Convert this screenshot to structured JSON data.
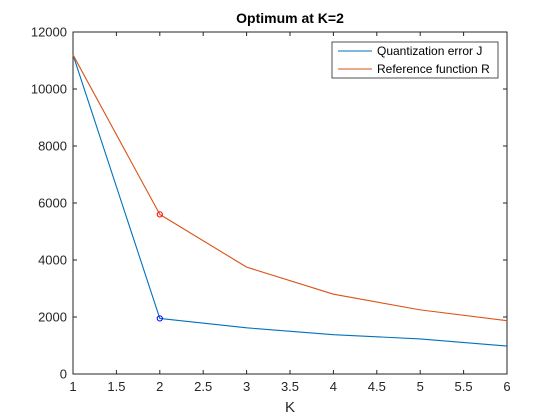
{
  "chart_data": {
    "type": "line",
    "title": "Optimum at K=2",
    "xlabel": "K",
    "ylabel": "",
    "xlim": [
      1,
      6
    ],
    "ylim": [
      0,
      12000
    ],
    "xticks": [
      "1",
      "1.5",
      "2",
      "2.5",
      "3",
      "3.5",
      "4",
      "4.5",
      "5",
      "5.5",
      "6"
    ],
    "yticks": [
      "0",
      "2000",
      "4000",
      "6000",
      "8000",
      "10000",
      "12000"
    ],
    "grid": false,
    "legend_position": "top-right",
    "x": [
      1,
      2,
      3,
      4,
      5,
      6
    ],
    "series": [
      {
        "name": "Quantization error J",
        "color": "#0072BD",
        "values": [
          11200,
          1950,
          1620,
          1380,
          1230,
          980
        ]
      },
      {
        "name": "Reference function R",
        "color": "#D95319",
        "values": [
          11200,
          5600,
          3750,
          2800,
          2250,
          1870
        ]
      }
    ],
    "markers": [
      {
        "series": 0,
        "x": 2,
        "y": 1950,
        "color": "#0000FF"
      },
      {
        "series": 1,
        "x": 2,
        "y": 5600,
        "color": "#FF0000"
      }
    ]
  }
}
